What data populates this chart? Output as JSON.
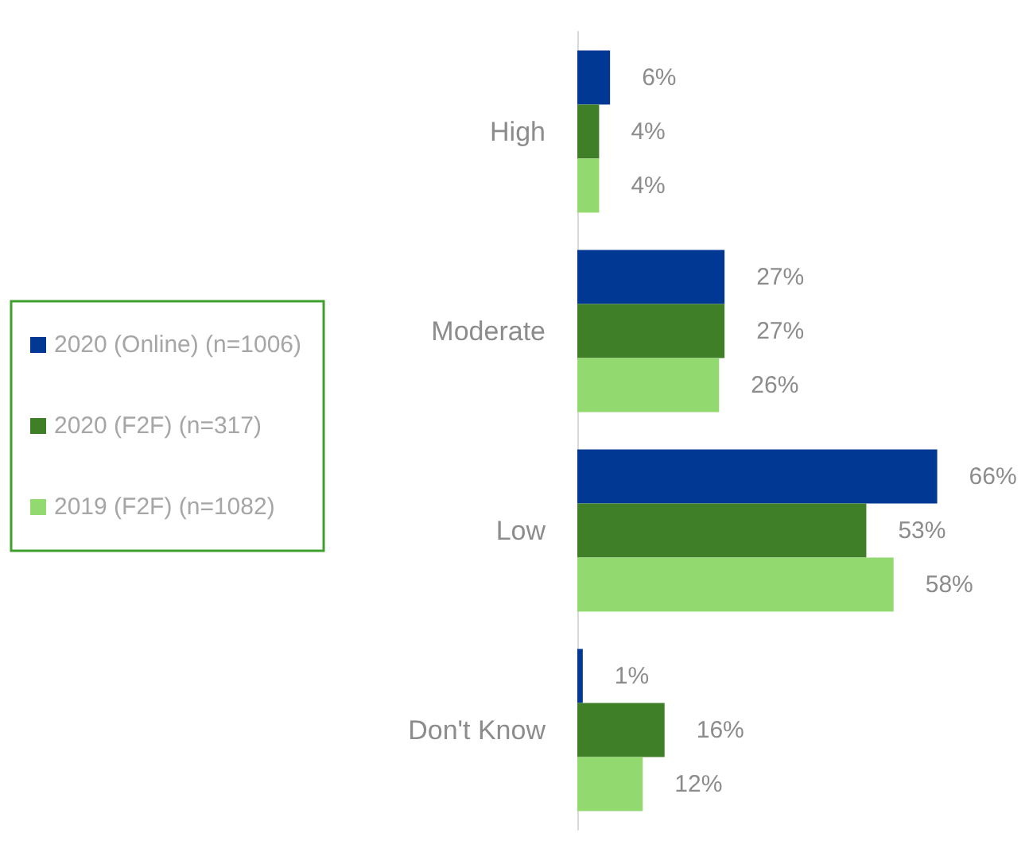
{
  "chart_data": {
    "type": "bar",
    "orientation": "horizontal",
    "categories": [
      "High",
      "Moderate",
      "Low",
      "Don't Know"
    ],
    "series": [
      {
        "name": "2020 (Online) (n=1006)",
        "color": "#003893",
        "values": [
          6,
          27,
          66,
          1
        ],
        "value_labels": [
          "6%",
          "27%",
          "66%",
          "1%"
        ]
      },
      {
        "name": "2020 (F2F) (n=317)",
        "color": "#3f7f27",
        "values": [
          4,
          27,
          53,
          16
        ],
        "value_labels": [
          "4%",
          "27%",
          "53%",
          "16%"
        ]
      },
      {
        "name": "2019 (F2F) (n=1082)",
        "color": "#92d96f",
        "values": [
          4,
          26,
          58,
          12
        ],
        "value_labels": [
          "4%",
          "26%",
          "58%",
          "12%"
        ]
      }
    ],
    "legend": "left"
  }
}
